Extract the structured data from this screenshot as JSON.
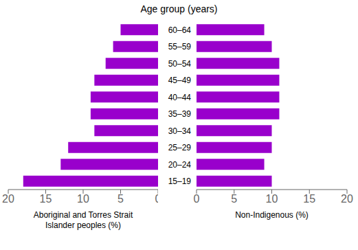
{
  "chart_data": [
    {
      "type": "bar",
      "orientation": "horizontal",
      "title": "Age group (years)",
      "categories": [
        "15–19",
        "20–24",
        "25–29",
        "30–34",
        "35–39",
        "40–44",
        "45–49",
        "50–54",
        "55–59",
        "60–64"
      ],
      "values": [
        18.0,
        13.0,
        12.0,
        8.5,
        9.0,
        9.0,
        8.5,
        7.0,
        6.0,
        5.0
      ],
      "color": "#9900cc",
      "xlabel": "Aboriginal and Torres Strait\nIslander peoples (%)",
      "xlim": [
        20,
        0
      ],
      "xticks": [
        0,
        5,
        10,
        15,
        20
      ],
      "grid": false
    },
    {
      "type": "bar",
      "orientation": "horizontal",
      "categories": [
        "15–19",
        "20–24",
        "25–29",
        "30–34",
        "35–39",
        "40–44",
        "45–49",
        "50–54",
        "55–59",
        "60–64"
      ],
      "values": [
        10.0,
        9.0,
        10.0,
        10.0,
        11.0,
        11.0,
        11.0,
        11.0,
        10.0,
        9.0
      ],
      "color": "#9900cc",
      "xlabel": "Non-Indigenous (%)",
      "xlim": [
        0,
        20
      ],
      "xticks": [
        0,
        5,
        10,
        15,
        20
      ],
      "grid": false
    }
  ]
}
